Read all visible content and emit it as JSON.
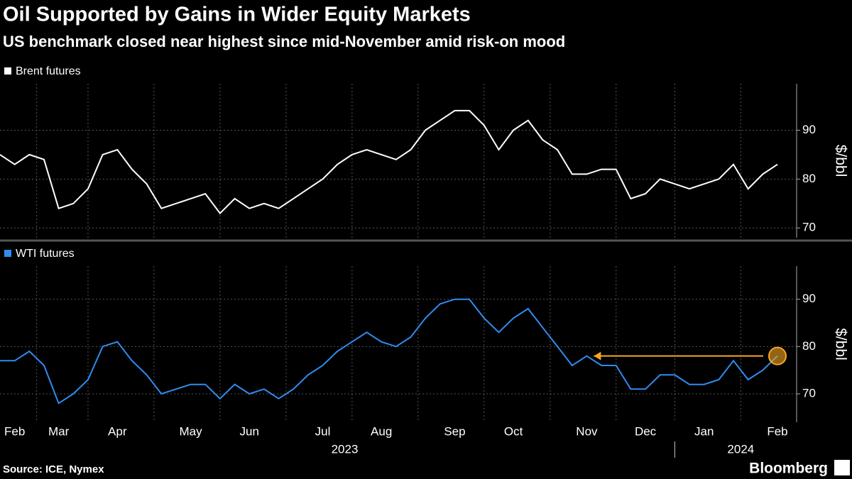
{
  "chart_data": {
    "type": "line",
    "title": "Oil Supported by Gains in Wider Equity Markets",
    "subtitle": "US benchmark closed near highest since mid-November amid risk-on mood",
    "categories": [
      null,
      "Feb",
      null,
      null,
      "Mar",
      null,
      null,
      null,
      "Apr",
      null,
      null,
      null,
      null,
      "May",
      null,
      null,
      null,
      "Jun",
      null,
      null,
      null,
      null,
      "Jul",
      null,
      null,
      null,
      "Aug",
      null,
      null,
      null,
      null,
      "Sep",
      null,
      null,
      null,
      "Oct",
      null,
      null,
      null,
      null,
      "Nov",
      null,
      null,
      null,
      "Dec",
      null,
      null,
      null,
      "Jan",
      null,
      null,
      null,
      null,
      "Feb"
    ],
    "x_groups": [
      {
        "label": "2023",
        "first": 0,
        "last": 47
      },
      {
        "label": "2024",
        "first": 48,
        "last": 53
      }
    ],
    "grid": true,
    "panels": [
      {
        "series": [
          {
            "name": "Brent futures",
            "color": "#ffffff",
            "values": [
              85,
              83,
              85,
              84,
              74,
              75,
              78,
              85,
              86,
              82,
              79,
              74,
              75,
              76,
              77,
              73,
              76,
              74,
              75,
              74,
              76,
              78,
              80,
              83,
              85,
              86,
              85,
              84,
              86,
              90,
              92,
              94,
              94,
              91,
              86,
              90,
              92,
              88,
              86,
              81,
              81,
              82,
              82,
              76,
              77,
              80,
              79,
              78,
              79,
              80,
              83,
              78,
              81,
              83
            ]
          }
        ],
        "ylim": [
          68,
          99.5
        ],
        "yticks": [
          70,
          80,
          90
        ],
        "y_label": "$/bbl"
      },
      {
        "series": [
          {
            "name": "WTI futures",
            "color": "#2f8cf0",
            "values": [
              77,
              77,
              79,
              76,
              68,
              70,
              73,
              80,
              81,
              77,
              74,
              70,
              71,
              72,
              72,
              69,
              72,
              70,
              71,
              69,
              71,
              74,
              76,
              79,
              81,
              83,
              81,
              80,
              82,
              86,
              89,
              90,
              90,
              86,
              83,
              86,
              88,
              84,
              80,
              76,
              78,
              76,
              76,
              71,
              71,
              74,
              74,
              72,
              72,
              73,
              77,
              73,
              75,
              78
            ]
          }
        ],
        "ylim": [
          64,
          97
        ],
        "yticks": [
          70,
          80,
          90
        ],
        "y_label": "$/bbl"
      }
    ],
    "source": "Source: ICE, Nymex",
    "brand": "Bloomberg"
  }
}
